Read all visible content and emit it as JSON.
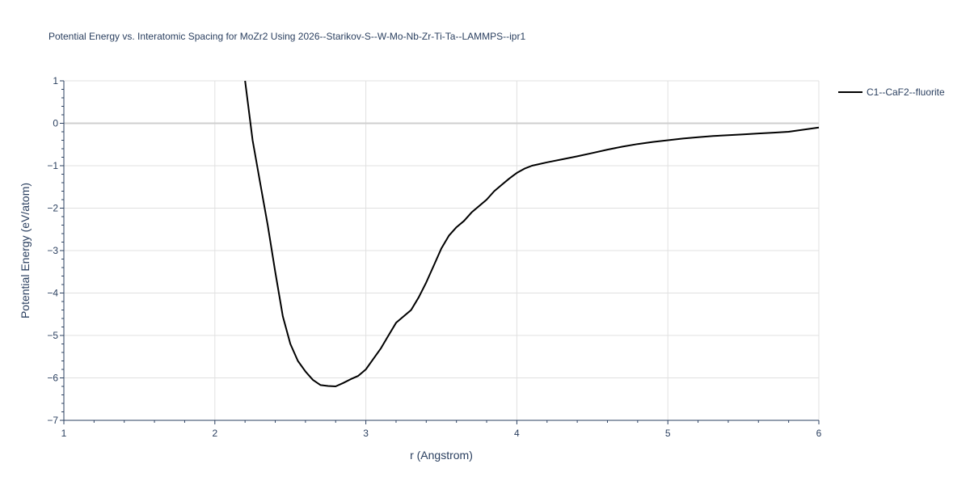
{
  "chart_data": {
    "type": "line",
    "title": "Potential Energy vs. Interatomic Spacing for MoZr2 Using 2026--Starikov-S--W-Mo-Nb-Zr-Ti-Ta--LAMMPS--ipr1",
    "xlabel": "r (Angstrom)",
    "ylabel": "Potential Energy (eV/atom)",
    "xlim": [
      1,
      6
    ],
    "ylim": [
      -7,
      1
    ],
    "x_ticks": [
      1,
      2,
      3,
      4,
      5,
      6
    ],
    "x_tick_labels": [
      "1",
      "2",
      "3",
      "4",
      "5",
      "6"
    ],
    "y_ticks": [
      1,
      0,
      -1,
      -2,
      -3,
      -4,
      -5,
      -6,
      -7
    ],
    "y_tick_labels": [
      "1",
      "0",
      "−1",
      "−2",
      "−3",
      "−4",
      "−5",
      "−6",
      "−7"
    ],
    "grid": true,
    "legend_position": "top-right-outside",
    "series": [
      {
        "name": "C1--CaF2--fluorite",
        "color": "#000000",
        "x": [
          2.2,
          2.25,
          2.3,
          2.35,
          2.4,
          2.45,
          2.5,
          2.55,
          2.6,
          2.65,
          2.7,
          2.75,
          2.8,
          2.85,
          2.9,
          2.95,
          3.0,
          3.05,
          3.1,
          3.15,
          3.2,
          3.25,
          3.3,
          3.35,
          3.4,
          3.45,
          3.5,
          3.55,
          3.6,
          3.65,
          3.7,
          3.75,
          3.8,
          3.85,
          3.9,
          3.95,
          4.0,
          4.05,
          4.1,
          4.2,
          4.3,
          4.4,
          4.5,
          4.6,
          4.7,
          4.8,
          4.9,
          5.0,
          5.1,
          5.2,
          5.3,
          5.4,
          5.5,
          5.6,
          5.7,
          5.8,
          5.9,
          6.0
        ],
        "y": [
          1.0,
          -0.4,
          -1.4,
          -2.4,
          -3.5,
          -4.55,
          -5.2,
          -5.6,
          -5.85,
          -6.05,
          -6.17,
          -6.19,
          -6.2,
          -6.12,
          -6.03,
          -5.95,
          -5.8,
          -5.55,
          -5.3,
          -5.0,
          -4.7,
          -4.55,
          -4.4,
          -4.1,
          -3.75,
          -3.35,
          -2.95,
          -2.65,
          -2.45,
          -2.3,
          -2.1,
          -1.95,
          -1.8,
          -1.6,
          -1.45,
          -1.3,
          -1.17,
          -1.07,
          -1.0,
          -0.92,
          -0.85,
          -0.78,
          -0.7,
          -0.62,
          -0.55,
          -0.49,
          -0.44,
          -0.4,
          -0.36,
          -0.33,
          -0.3,
          -0.28,
          -0.26,
          -0.24,
          -0.22,
          -0.2,
          -0.15,
          -0.1
        ]
      }
    ]
  }
}
